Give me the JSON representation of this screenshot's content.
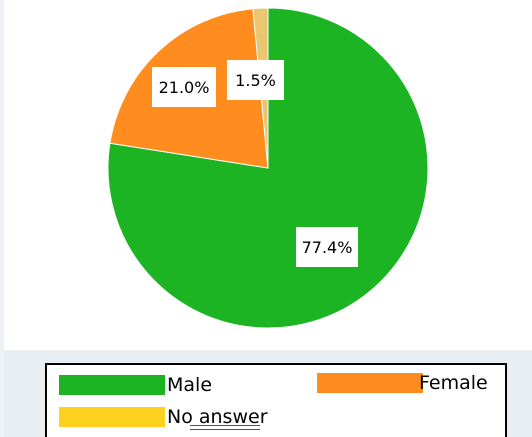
{
  "chart_data": {
    "type": "pie",
    "categories": [
      "Male",
      "Female",
      "No answer"
    ],
    "values": [
      77.4,
      21.0,
      1.5
    ],
    "labels": [
      "77.4%",
      "21.0%",
      "1.5%"
    ],
    "colors": [
      "#1db424",
      "#ff8c1e",
      "#e9c66f"
    ],
    "legend_colors": [
      "#1db424",
      "#ff8c1e",
      "#ffd11f"
    ],
    "title": "",
    "legend": "bottom"
  },
  "legend": {
    "male": "Male",
    "female": "Female",
    "no_answer": "No answer"
  }
}
